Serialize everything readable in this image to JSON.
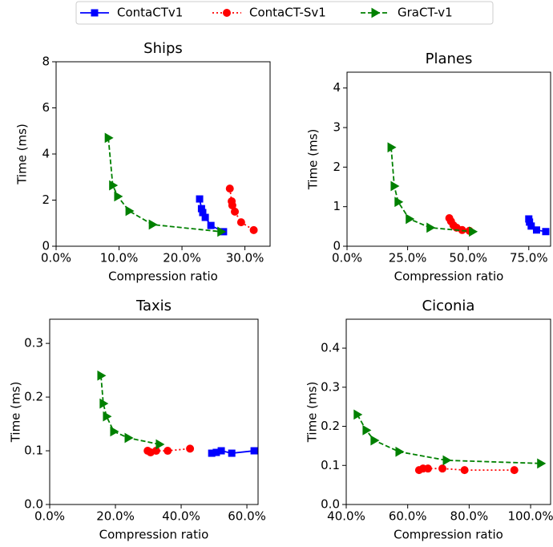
{
  "chart_data": [
    {
      "type": "line",
      "title": "Ships",
      "x_label": "Compression ratio",
      "y_label": "Time (ms)",
      "xlim": [
        0,
        34
      ],
      "xticks": [
        {
          "value": 0,
          "label": "0.0%"
        },
        {
          "value": 10,
          "label": "10.0%"
        },
        {
          "value": 20,
          "label": "20.0%"
        },
        {
          "value": 30,
          "label": "30.0%"
        }
      ],
      "ylim": [
        0,
        8
      ],
      "yticks": [
        0,
        2,
        4,
        6,
        8
      ],
      "series": [
        {
          "name": "ContaCTv1",
          "color": "#0000ff",
          "marker": "square",
          "linestyle": "solid",
          "x": [
            22.8,
            23.1,
            23.3,
            23.7,
            24.6,
            26.6
          ],
          "values": [
            2.05,
            1.63,
            1.46,
            1.25,
            0.9,
            0.63
          ]
        },
        {
          "name": "ContaCT-Sv1",
          "color": "#ff0000",
          "marker": "circle",
          "linestyle": "dotted",
          "x": [
            27.6,
            27.9,
            28.0,
            28.4,
            29.4,
            31.4
          ],
          "values": [
            2.5,
            1.95,
            1.77,
            1.5,
            1.04,
            0.7
          ]
        },
        {
          "name": "GraCT-v1",
          "color": "#008000",
          "marker": "triangle-right",
          "linestyle": "dashed",
          "x": [
            8.3,
            9.0,
            9.8,
            11.6,
            15.3,
            26.2
          ],
          "values": [
            4.7,
            2.64,
            2.16,
            1.53,
            0.94,
            0.63
          ]
        }
      ]
    },
    {
      "type": "line",
      "title": "Planes",
      "x_label": "Compression ratio",
      "y_label": "Time (ms)",
      "xlim": [
        0,
        84
      ],
      "xticks": [
        {
          "value": 0,
          "label": "0.0%"
        },
        {
          "value": 25,
          "label": "25.0%"
        },
        {
          "value": 50,
          "label": "50.0%"
        },
        {
          "value": 75,
          "label": "75.0%"
        }
      ],
      "ylim": [
        0,
        4.4
      ],
      "yticks": [
        0,
        1,
        2,
        3,
        4
      ],
      "series": [
        {
          "name": "ContaCTv1",
          "color": "#0000ff",
          "marker": "square",
          "linestyle": "solid",
          "x": [
            75,
            75.3,
            76,
            78.2,
            82
          ],
          "values": [
            0.69,
            0.61,
            0.51,
            0.41,
            0.37
          ]
        },
        {
          "name": "ContaCT-Sv1",
          "color": "#ff0000",
          "marker": "circle",
          "linestyle": "dotted",
          "x": [
            42.2,
            42.9,
            43.9,
            45.2,
            47.5,
            50.5
          ],
          "values": [
            0.71,
            0.63,
            0.53,
            0.47,
            0.41,
            0.39
          ]
        },
        {
          "name": "GraCT-v1",
          "color": "#008000",
          "marker": "triangle-right",
          "linestyle": "dashed",
          "x": [
            18.2,
            19.5,
            21.1,
            25.7,
            34.3,
            51.8
          ],
          "values": [
            2.5,
            1.52,
            1.12,
            0.69,
            0.47,
            0.37
          ]
        }
      ]
    },
    {
      "type": "line",
      "title": "Taxis",
      "x_label": "Compression ratio",
      "y_label": "Time (ms)",
      "xlim": [
        0,
        63.4
      ],
      "xticks": [
        {
          "value": 0,
          "label": "0.0%"
        },
        {
          "value": 20,
          "label": "20.0%"
        },
        {
          "value": 40,
          "label": "40.0%"
        },
        {
          "value": 60,
          "label": "60.0%"
        }
      ],
      "ylim": [
        0,
        0.345
      ],
      "yticks": [
        {
          "value": 0,
          "label": "0.0"
        },
        0.1,
        0.2,
        0.3
      ],
      "series": [
        {
          "name": "ContaCTv1",
          "color": "#0000ff",
          "marker": "square",
          "linestyle": "solid",
          "x": [
            49.3,
            50.7,
            52.2,
            55.4,
            62.2
          ],
          "values": [
            0.0955,
            0.097,
            0.1,
            0.0955,
            0.1
          ]
        },
        {
          "name": "ContaCT-Sv1",
          "color": "#ff0000",
          "marker": "circle",
          "linestyle": "dotted",
          "x": [
            29.8,
            30.7,
            32.4,
            35.9,
            42.7
          ],
          "values": [
            0.1,
            0.097,
            0.1,
            0.1,
            0.104
          ]
        },
        {
          "name": "GraCT-v1",
          "color": "#008000",
          "marker": "triangle-right",
          "linestyle": "dashed",
          "x": [
            15.6,
            16.3,
            17.3,
            19.5,
            23.9,
            33.4
          ],
          "values": [
            0.24,
            0.188,
            0.164,
            0.136,
            0.124,
            0.112
          ]
        }
      ]
    },
    {
      "type": "line",
      "title": "Ciconia",
      "x_label": "Compression ratio",
      "y_label": "Time (ms)",
      "xlim": [
        40,
        106.5
      ],
      "xticks": [
        {
          "value": 40,
          "label": "40.0%"
        },
        {
          "value": 60,
          "label": "60.0%"
        },
        {
          "value": 80,
          "label": "80.0%"
        },
        {
          "value": 100,
          "label": "100.0%"
        }
      ],
      "ylim": [
        0,
        0.474
      ],
      "yticks": [
        {
          "value": 0,
          "label": "0.0"
        },
        0.1,
        0.2,
        0.3,
        0.4
      ],
      "series": [
        {
          "name": "ContaCT-Sv1",
          "color": "#ff0000",
          "marker": "circle",
          "linestyle": "dotted",
          "x": [
            63.7,
            65,
            66.6,
            71.3,
            78.5,
            94.7
          ],
          "values": [
            0.088,
            0.092,
            0.092,
            0.092,
            0.088,
            0.088
          ]
        },
        {
          "name": "GraCT-v1",
          "color": "#008000",
          "marker": "triangle-right",
          "linestyle": "dashed",
          "x": [
            43.6,
            46.5,
            49.1,
            57.2,
            72.6,
            103.3
          ],
          "values": [
            0.23,
            0.19,
            0.164,
            0.135,
            0.113,
            0.105
          ]
        }
      ]
    }
  ]
}
